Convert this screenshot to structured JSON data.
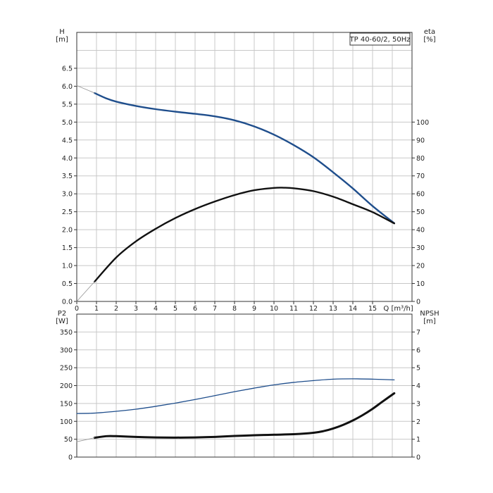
{
  "chart_data": [
    {
      "type": "line",
      "panel": "top",
      "annotation": "TP 40-60/2, 50Hz",
      "xlabel": "Q [m³/h]",
      "ylabel_left": [
        "H",
        "[m]"
      ],
      "ylabel_right": [
        "eta",
        "[%]"
      ],
      "xlim": [
        0,
        17
      ],
      "ylim_left": [
        0,
        7.5
      ],
      "ylim_right": [
        0,
        150
      ],
      "x_ticks": [
        0,
        1,
        2,
        3,
        4,
        5,
        6,
        7,
        8,
        9,
        10,
        11,
        12,
        13,
        14,
        15
      ],
      "y_ticks_left": [
        0.0,
        0.5,
        1.0,
        1.5,
        2.0,
        2.5,
        3.0,
        3.5,
        4.0,
        4.5,
        5.0,
        5.5,
        6.0,
        6.5
      ],
      "y_ticks_right": [
        0,
        10,
        20,
        30,
        40,
        50,
        60,
        70,
        80,
        90,
        100
      ],
      "grid": true,
      "series": [
        {
          "axis": "left",
          "color": "#1f4e8c",
          "x": [
            0.9,
            1.5,
            2,
            3,
            4,
            5,
            6,
            7,
            8,
            9,
            10,
            11,
            12,
            13,
            14,
            15,
            16.1
          ],
          "y": [
            5.81,
            5.66,
            5.57,
            5.45,
            5.36,
            5.29,
            5.23,
            5.16,
            5.05,
            4.88,
            4.65,
            4.36,
            4.02,
            3.6,
            3.15,
            2.66,
            2.18
          ]
        },
        {
          "axis": "right",
          "color": "#111111",
          "x": [
            0.9,
            2,
            3,
            4,
            5,
            6,
            7,
            8,
            9,
            10,
            10.5,
            11,
            12,
            13,
            14,
            15,
            16.1
          ],
          "y": [
            11,
            24.5,
            33.5,
            40.5,
            46.5,
            51.5,
            55.7,
            59.3,
            62,
            63.3,
            63.4,
            63.1,
            61.5,
            58.4,
            54.2,
            49.8,
            43.5
          ]
        },
        {
          "axis": "left",
          "color": "#999999",
          "x": [
            0,
            0.9
          ],
          "y": [
            6.02,
            5.81
          ]
        },
        {
          "axis": "right",
          "color": "#999999",
          "x": [
            0,
            0.9
          ],
          "y": [
            0,
            11
          ]
        }
      ]
    },
    {
      "type": "line",
      "panel": "bottom",
      "ylabel_left": [
        "P2",
        "[W]"
      ],
      "ylabel_right": [
        "NPSH",
        "[m]"
      ],
      "xlim": [
        0,
        17
      ],
      "ylim_left": [
        0,
        400
      ],
      "ylim_right": [
        0,
        8
      ],
      "y_ticks_left": [
        0,
        50,
        100,
        150,
        200,
        250,
        300,
        350
      ],
      "y_ticks_right": [
        0,
        1,
        2,
        3,
        4,
        5,
        6,
        7
      ],
      "grid": true,
      "series": [
        {
          "axis": "left",
          "color": "#1f4e8c",
          "x": [
            0,
            0.9,
            2,
            3,
            4,
            5,
            6,
            7,
            8,
            9,
            10,
            11,
            12,
            13,
            14,
            15,
            16.1
          ],
          "y": [
            122,
            123,
            128,
            134,
            142,
            151,
            161,
            172,
            183,
            193,
            202,
            209,
            214,
            218,
            219,
            218,
            216
          ]
        },
        {
          "axis": "right",
          "color": "#111111",
          "x": [
            0.9,
            1.5,
            2,
            3,
            4,
            5,
            6,
            7,
            8,
            9,
            10,
            11,
            12,
            12.5,
            13,
            13.5,
            14,
            14.5,
            15,
            15.5,
            16.1
          ],
          "y": [
            1.08,
            1.17,
            1.17,
            1.13,
            1.1,
            1.09,
            1.1,
            1.13,
            1.18,
            1.22,
            1.25,
            1.28,
            1.36,
            1.45,
            1.6,
            1.8,
            2.05,
            2.35,
            2.7,
            3.1,
            3.57
          ]
        },
        {
          "axis": "left",
          "color": "#999999",
          "x": [
            0,
            0.9
          ],
          "y": [
            43,
            54
          ]
        }
      ]
    }
  ]
}
